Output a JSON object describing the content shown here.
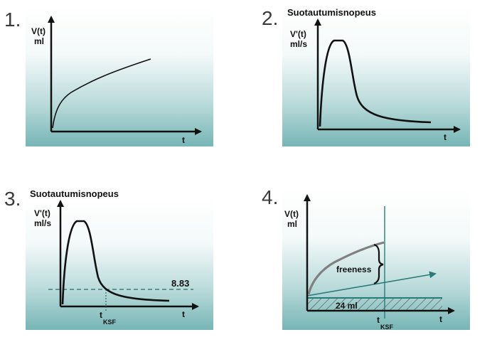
{
  "panels": [
    {
      "number": "1.",
      "title": "",
      "y_label_1": "V(t)",
      "y_label_2": "ml",
      "x_label": "t"
    },
    {
      "number": "2.",
      "title": "Suotautumisnopeus",
      "y_label_1": "V'(t)",
      "y_label_2": "ml/s",
      "x_label": "t"
    },
    {
      "number": "3.",
      "title": "Suotautumisnopeus",
      "y_label_1": "V'(t)",
      "y_label_2": "ml/s",
      "x_label": "t",
      "threshold_value": "8.83",
      "marker_main": "t",
      "marker_sub": "KSF"
    },
    {
      "number": "4.",
      "title": "",
      "y_label_1": "V(t)",
      "y_label_2": "ml",
      "x_label": "t",
      "bracket_label": "freeness",
      "region_label": "24 ml",
      "marker_main": "t",
      "marker_sub": "KSF"
    }
  ],
  "colors": {
    "panel_bottom": "#77b5b5",
    "axis": "#111111",
    "curve_grey": "#808080",
    "arrow_teal": "#2b7a7a"
  }
}
